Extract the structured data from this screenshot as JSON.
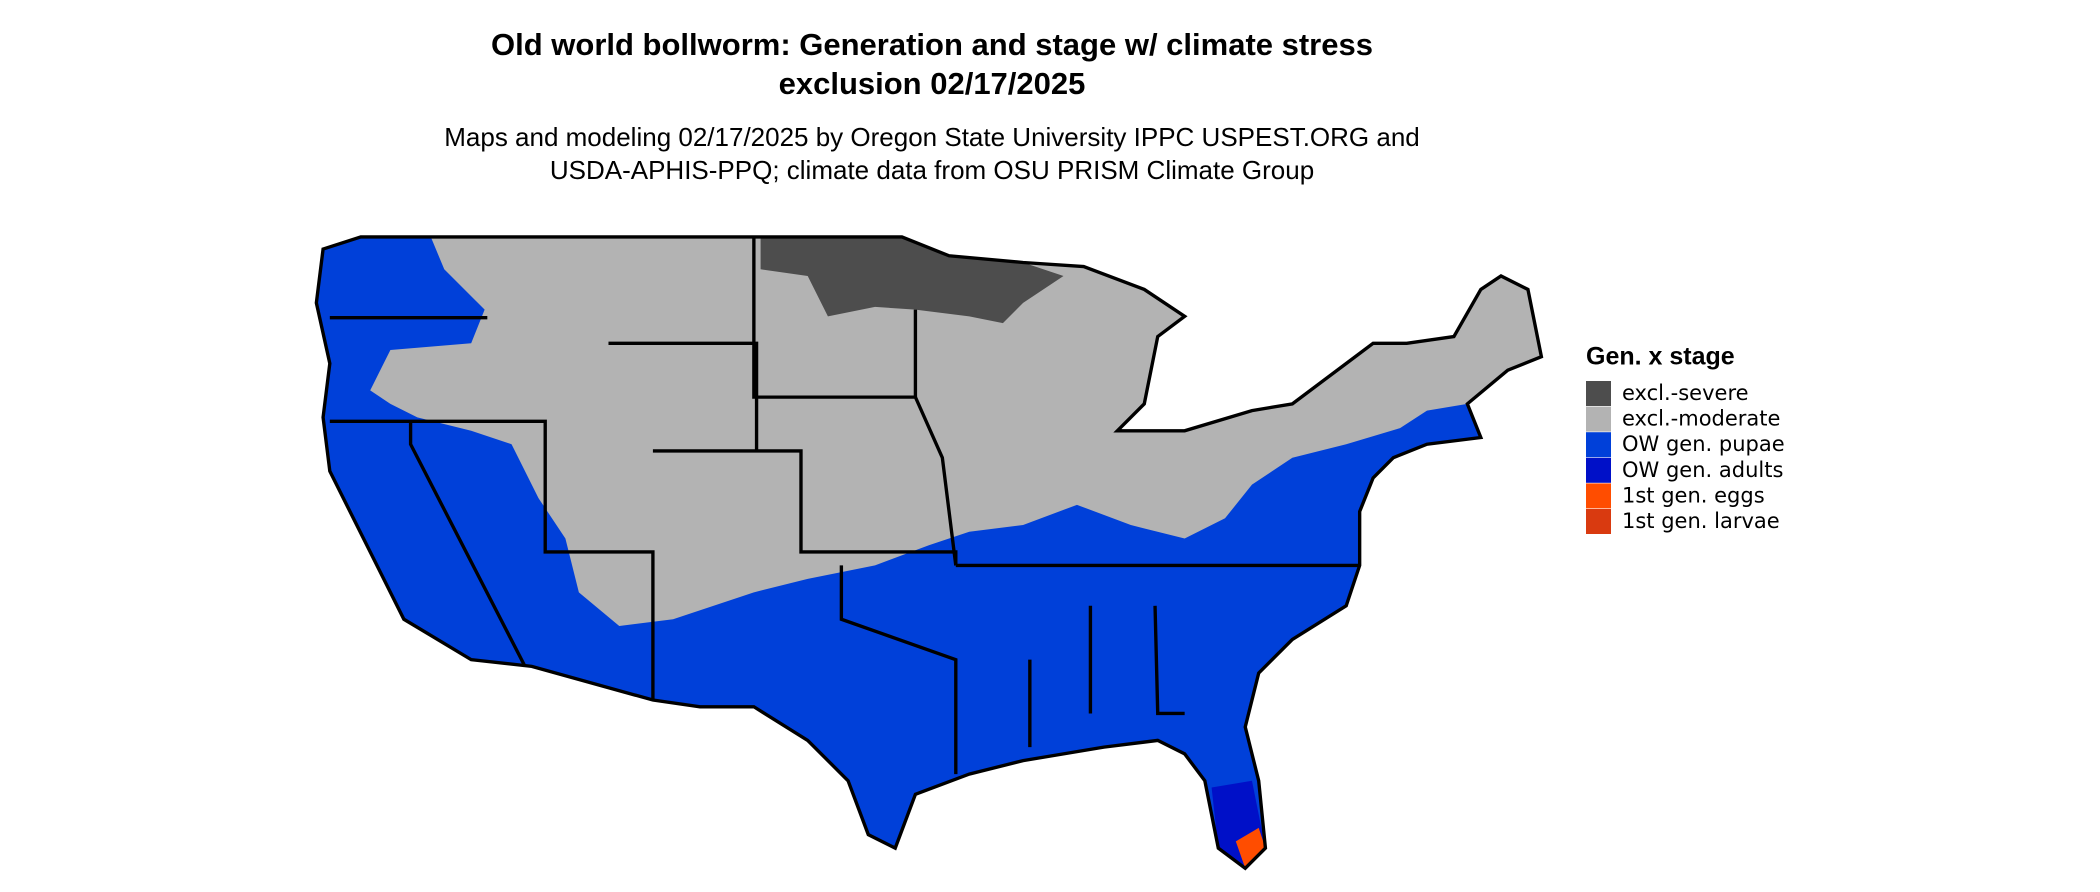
{
  "title_lines": [
    "Old world bollworm: Generation and stage w/ climate stress",
    "exclusion 02/17/2025"
  ],
  "subtitle_lines": [
    "Maps and modeling 02/17/2025 by Oregon State University IPPC USPEST.ORG and",
    "USDA-APHIS-PPQ; climate data from OSU PRISM Climate Group"
  ],
  "legend": {
    "title": "Gen. x stage",
    "items": [
      {
        "label": "excl.-severe",
        "color": "#4d4d4d"
      },
      {
        "label": "excl.-moderate",
        "color": "#b3b3b3"
      },
      {
        "label": "OW gen. pupae",
        "color": "#0040d9"
      },
      {
        "label": "OW gen. adults",
        "color": "#0010c8"
      },
      {
        "label": "1st gen. eggs",
        "color": "#ff4d00"
      },
      {
        "label": "1st gen. larvae",
        "color": "#d93a10"
      }
    ]
  }
}
